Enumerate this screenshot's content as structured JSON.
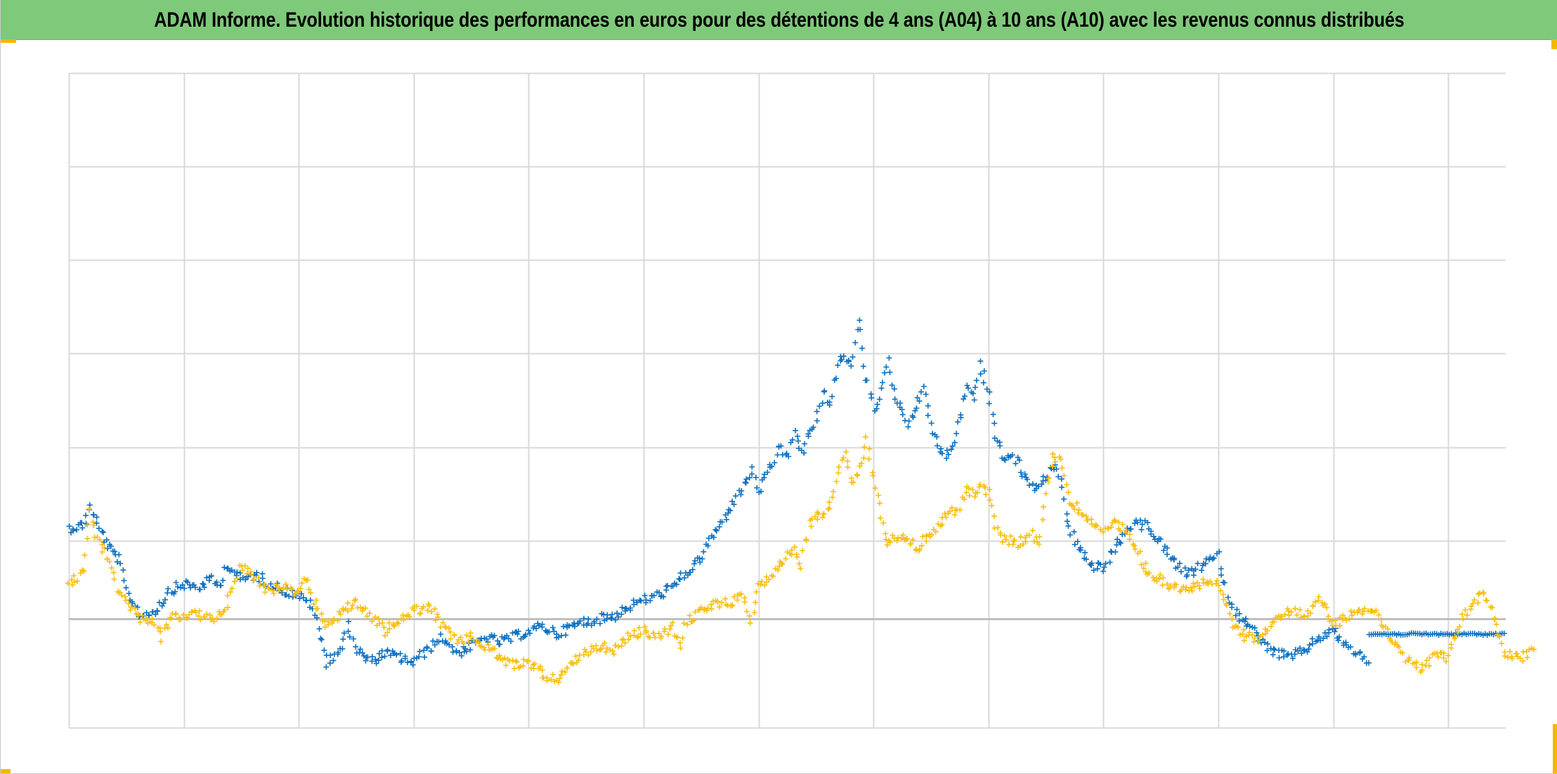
{
  "title": "ADAM Informe. Evolution historique des performances en euros pour des détentions de 4 ans (A04) à 10 ans (A10) avec les revenus connus distribués",
  "colors": {
    "header_bg": "#7fc97a",
    "accent_corner": "#f5b800",
    "series_blue": "#0e70c0",
    "series_yellow": "#f9bf11",
    "grid": "#d9d9d9",
    "baseline": "#bfbfbf"
  },
  "chart_data": {
    "type": "scatter",
    "title": "ADAM Informe. Evolution historique des performances en euros pour des détentions de 4 ans (A04) à 10 ans (A10) avec les revenus connus distribués",
    "xlabel": "",
    "ylabel": "",
    "marker": "plus",
    "grid": true,
    "legend": "none",
    "x_range": [
      0,
      100
    ],
    "x_grid_step": 8,
    "ylim": [
      -0.7,
      3.5
    ],
    "y_gridlines": [
      -0.7,
      0.5,
      1.1,
      1.7,
      2.3,
      2.9,
      3.5
    ],
    "baseline_y": 0,
    "series": [
      {
        "color": "#0e70c0",
        "points": [
          [
            0,
            0.58
          ],
          [
            1,
            0.6
          ],
          [
            1.5,
            0.72
          ],
          [
            2,
            0.6
          ],
          [
            2.8,
            0.45
          ],
          [
            3.5,
            0.38
          ],
          [
            4,
            0.18
          ],
          [
            5,
            0.02
          ],
          [
            6,
            0.05
          ],
          [
            6.5,
            0.1
          ],
          [
            7,
            0.18
          ],
          [
            8,
            0.22
          ],
          [
            9,
            0.2
          ],
          [
            10,
            0.25
          ],
          [
            10.5,
            0.2
          ],
          [
            11,
            0.35
          ],
          [
            12,
            0.25
          ],
          [
            13,
            0.28
          ],
          [
            14,
            0.22
          ],
          [
            15,
            0.18
          ],
          [
            16,
            0.15
          ],
          [
            17,
            0.08
          ],
          [
            17.5,
            -0.12
          ],
          [
            18,
            -0.28
          ],
          [
            19,
            -0.18
          ],
          [
            19.5,
            -0.05
          ],
          [
            20,
            -0.2
          ],
          [
            21,
            -0.28
          ],
          [
            22,
            -0.22
          ],
          [
            23,
            -0.25
          ],
          [
            24,
            -0.28
          ],
          [
            25,
            -0.2
          ],
          [
            26,
            -0.12
          ],
          [
            27,
            -0.22
          ],
          [
            28,
            -0.18
          ],
          [
            29,
            -0.12
          ],
          [
            30,
            -0.15
          ],
          [
            31,
            -0.12
          ],
          [
            32,
            -0.08
          ],
          [
            33,
            -0.05
          ],
          [
            34,
            -0.1
          ],
          [
            35,
            -0.05
          ],
          [
            36,
            -0.02
          ],
          [
            37,
            0.0
          ],
          [
            38,
            0.02
          ],
          [
            39,
            0.08
          ],
          [
            40,
            0.12
          ],
          [
            41,
            0.15
          ],
          [
            42,
            0.2
          ],
          [
            43,
            0.3
          ],
          [
            44,
            0.38
          ],
          [
            44.5,
            0.48
          ],
          [
            45,
            0.55
          ],
          [
            46,
            0.7
          ],
          [
            47,
            0.85
          ],
          [
            47.5,
            0.95
          ],
          [
            48,
            0.82
          ],
          [
            49,
            0.98
          ],
          [
            49.5,
            1.12
          ],
          [
            50,
            1.02
          ],
          [
            50.5,
            1.2
          ],
          [
            51,
            1.05
          ],
          [
            51.5,
            1.2
          ],
          [
            52,
            1.25
          ],
          [
            52.5,
            1.45
          ],
          [
            53,
            1.38
          ],
          [
            53.5,
            1.62
          ],
          [
            54,
            1.7
          ],
          [
            54.5,
            1.6
          ],
          [
            55,
            1.92
          ],
          [
            55.5,
            1.55
          ],
          [
            56,
            1.35
          ],
          [
            56.5,
            1.45
          ],
          [
            57,
            1.65
          ],
          [
            57.5,
            1.4
          ],
          [
            58,
            1.35
          ],
          [
            58.5,
            1.25
          ],
          [
            59,
            1.35
          ],
          [
            59.5,
            1.5
          ],
          [
            60,
            1.25
          ],
          [
            60.5,
            1.1
          ],
          [
            61,
            1.05
          ],
          [
            61.5,
            1.1
          ],
          [
            62,
            1.28
          ],
          [
            62.5,
            1.5
          ],
          [
            63,
            1.42
          ],
          [
            63.5,
            1.62
          ],
          [
            64,
            1.45
          ],
          [
            64.5,
            1.18
          ],
          [
            65,
            1.05
          ],
          [
            66,
            1.02
          ],
          [
            66.5,
            0.9
          ],
          [
            67,
            0.85
          ],
          [
            67.5,
            0.85
          ],
          [
            68,
            0.9
          ],
          [
            68.5,
            0.98
          ],
          [
            69,
            0.9
          ],
          [
            69.5,
            0.62
          ],
          [
            70,
            0.5
          ],
          [
            71,
            0.35
          ],
          [
            72,
            0.32
          ],
          [
            73,
            0.48
          ],
          [
            74,
            0.6
          ],
          [
            75,
            0.6
          ],
          [
            76,
            0.48
          ],
          [
            77,
            0.35
          ],
          [
            78,
            0.28
          ],
          [
            79,
            0.35
          ],
          [
            80,
            0.4
          ],
          [
            80.5,
            0.2
          ],
          [
            81,
            0.05
          ],
          [
            82,
            -0.02
          ],
          [
            83,
            -0.15
          ],
          [
            84,
            -0.22
          ],
          [
            85,
            -0.25
          ],
          [
            86,
            -0.2
          ],
          [
            87,
            -0.12
          ],
          [
            88,
            -0.08
          ],
          [
            89,
            -0.18
          ],
          [
            90,
            -0.25
          ],
          [
            90.5,
            -0.27
          ]
        ]
      },
      {
        "color": "#0e70c0",
        "points": [
          [
            90.5,
            -0.1
          ],
          [
            100,
            -0.1
          ]
        ],
        "style": "flat_line"
      },
      {
        "color": "#f9bf11",
        "points": [
          [
            0,
            0.22
          ],
          [
            1,
            0.3
          ],
          [
            1.5,
            0.68
          ],
          [
            2,
            0.5
          ],
          [
            3,
            0.35
          ],
          [
            3.5,
            0.15
          ],
          [
            4,
            0.12
          ],
          [
            5,
            0.0
          ],
          [
            6,
            -0.02
          ],
          [
            6.5,
            -0.12
          ],
          [
            7,
            0.0
          ],
          [
            8,
            0.02
          ],
          [
            9,
            0.03
          ],
          [
            10,
            -0.02
          ],
          [
            11,
            0.1
          ],
          [
            12,
            0.35
          ],
          [
            13,
            0.25
          ],
          [
            14,
            0.18
          ],
          [
            15,
            0.2
          ],
          [
            16,
            0.15
          ],
          [
            16.5,
            0.25
          ],
          [
            17,
            0.12
          ],
          [
            18,
            -0.05
          ],
          [
            19,
            0.05
          ],
          [
            20,
            0.1
          ],
          [
            21,
            0.02
          ],
          [
            22,
            -0.08
          ],
          [
            23,
            -0.02
          ],
          [
            24,
            0.05
          ],
          [
            25,
            0.08
          ],
          [
            26,
            -0.05
          ],
          [
            27,
            -0.15
          ],
          [
            28,
            -0.12
          ],
          [
            29,
            -0.18
          ],
          [
            30,
            -0.25
          ],
          [
            31,
            -0.3
          ],
          [
            32,
            -0.28
          ],
          [
            33,
            -0.35
          ],
          [
            34,
            -0.4
          ],
          [
            35,
            -0.3
          ],
          [
            36,
            -0.22
          ],
          [
            37,
            -0.18
          ],
          [
            38,
            -0.2
          ],
          [
            39,
            -0.12
          ],
          [
            40,
            -0.08
          ],
          [
            41,
            -0.12
          ],
          [
            42,
            -0.05
          ],
          [
            42.5,
            -0.18
          ],
          [
            43,
            -0.02
          ],
          [
            44,
            0.05
          ],
          [
            45,
            0.1
          ],
          [
            46,
            0.1
          ],
          [
            47,
            0.15
          ],
          [
            47.5,
            0.0
          ],
          [
            48,
            0.2
          ],
          [
            49,
            0.3
          ],
          [
            50,
            0.4
          ],
          [
            50.5,
            0.45
          ],
          [
            51,
            0.35
          ],
          [
            51.5,
            0.6
          ],
          [
            52,
            0.65
          ],
          [
            53,
            0.72
          ],
          [
            53.5,
            0.95
          ],
          [
            54,
            1.05
          ],
          [
            54.5,
            0.85
          ],
          [
            55,
            0.95
          ],
          [
            55.5,
            1.15
          ],
          [
            56,
            0.9
          ],
          [
            56.5,
            0.65
          ],
          [
            57,
            0.5
          ],
          [
            58,
            0.55
          ],
          [
            59,
            0.45
          ],
          [
            60,
            0.55
          ],
          [
            61,
            0.65
          ],
          [
            62,
            0.72
          ],
          [
            62.5,
            0.85
          ],
          [
            63,
            0.78
          ],
          [
            63.5,
            0.88
          ],
          [
            64,
            0.8
          ],
          [
            64.5,
            0.6
          ],
          [
            65,
            0.52
          ],
          [
            66,
            0.48
          ],
          [
            67,
            0.55
          ],
          [
            67.5,
            0.45
          ],
          [
            68,
            0.8
          ],
          [
            68.5,
            1.05
          ],
          [
            69,
            1.02
          ],
          [
            69.5,
            0.78
          ],
          [
            70,
            0.72
          ],
          [
            71,
            0.65
          ],
          [
            72,
            0.55
          ],
          [
            73,
            0.62
          ],
          [
            74,
            0.5
          ],
          [
            75,
            0.3
          ],
          [
            76,
            0.25
          ],
          [
            77,
            0.2
          ],
          [
            78,
            0.18
          ],
          [
            79,
            0.25
          ],
          [
            80,
            0.22
          ],
          [
            80.5,
            0.1
          ],
          [
            81,
            -0.05
          ],
          [
            82,
            -0.12
          ],
          [
            83,
            -0.12
          ],
          [
            84,
            -0.02
          ],
          [
            85,
            0.05
          ],
          [
            86,
            0.02
          ],
          [
            87,
            0.12
          ],
          [
            87.5,
            0.05
          ],
          [
            88,
            -0.05
          ],
          [
            89,
            0.02
          ],
          [
            90,
            0.05
          ],
          [
            91,
            0.05
          ],
          [
            92,
            -0.12
          ],
          [
            93,
            -0.25
          ],
          [
            94,
            -0.32
          ],
          [
            95,
            -0.25
          ],
          [
            96,
            -0.25
          ],
          [
            96.5,
            -0.12
          ],
          [
            97,
            0.0
          ],
          [
            98,
            0.12
          ],
          [
            98.5,
            0.18
          ],
          [
            99,
            0.05
          ],
          [
            99.5,
            -0.1
          ],
          [
            100,
            -0.22
          ],
          [
            101,
            -0.25
          ],
          [
            102,
            -0.2
          ]
        ]
      }
    ]
  }
}
